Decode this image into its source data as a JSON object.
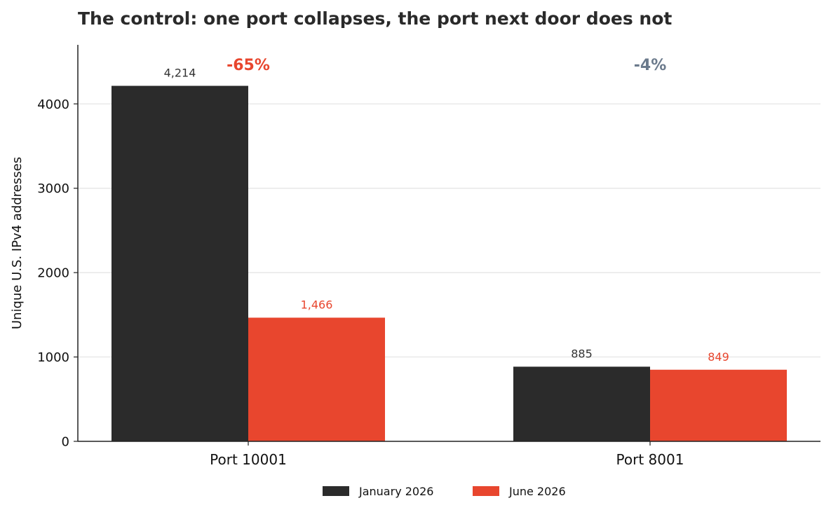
{
  "chart_data": {
    "type": "bar",
    "title": "The control: one port collapses, the port next door does not",
    "xlabel": "",
    "ylabel": "Unique U.S. IPv4 addresses",
    "categories": [
      "Port 10001",
      "Port 8001"
    ],
    "series": [
      {
        "name": "January 2026",
        "color": "#2b2b2b",
        "values": [
          4214,
          885
        ],
        "value_labels": [
          "4,214",
          "885"
        ]
      },
      {
        "name": "June 2026",
        "color": "#e8462e",
        "values": [
          1466,
          849
        ],
        "value_labels": [
          "1,466",
          "849"
        ]
      }
    ],
    "ylim": [
      0,
      4700
    ],
    "yticks": [
      0,
      1000,
      2000,
      3000,
      4000
    ],
    "ytick_labels": [
      "0",
      "1000",
      "2000",
      "3000",
      "4000"
    ],
    "grid": "horizontal",
    "legend_placement": "bottom-center",
    "annotations": [
      {
        "category": "Port 10001",
        "text": "-65%",
        "color": "#e8462e"
      },
      {
        "category": "Port 8001",
        "text": "-4%",
        "color": "#6b7a8c"
      }
    ]
  }
}
